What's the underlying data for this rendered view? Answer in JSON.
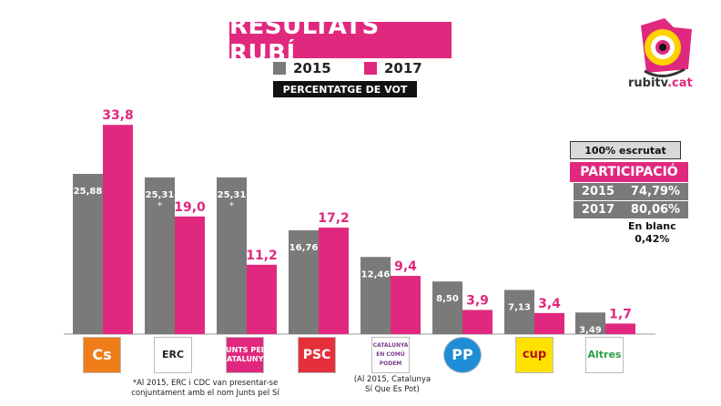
{
  "header": {
    "title": "RESULTATS RUBÍ",
    "subtitle": "PERCENTATGE DE VOT",
    "legend_2015": "2015",
    "legend_2017": "2017"
  },
  "brand": {
    "logo_text": "rubitv",
    "logo_tld": ".cat"
  },
  "colors": {
    "series_2015": "#7a7a7a",
    "series_2017": "#e0297e"
  },
  "panel": {
    "escrutat": "100% escrutat",
    "participacio_title": "PARTICIPACIÓ",
    "rows": [
      {
        "year": "2015",
        "value": "74,79%"
      },
      {
        "year": "2017",
        "value": "80,06%"
      }
    ],
    "blanc_label": "En blanc",
    "blanc_value": "0,42%"
  },
  "parties": [
    {
      "name": "Cs",
      "bg": "#ef7d1a",
      "fg": "#ffffff"
    },
    {
      "name": "ERC",
      "bg": "#ffffff",
      "fg": "#222222"
    },
    {
      "name": "JUNTS PER CATALUNYA",
      "bg": "#e0297e",
      "fg": "#ffffff"
    },
    {
      "name": "PSC",
      "bg": "#e5303c",
      "fg": "#ffffff"
    },
    {
      "name": "CATALUNYA EN COMÚ PODEM",
      "bg": "#ffffff",
      "fg": "#7b3d8d"
    },
    {
      "name": "PP",
      "bg": "#1f8dd6",
      "fg": "#ffffff"
    },
    {
      "name": "cup",
      "bg": "#ffe100",
      "fg": "#b5121b"
    },
    {
      "name": "Altres",
      "bg": "#ffffff",
      "fg": "#2e9e44"
    }
  ],
  "notes": {
    "erc_line1": "*Al 2015, ERC i CDC van presentar-se",
    "erc_line2": "conjuntament amb el nom Junts pel Sí",
    "comu_line1": "(Al 2015, Catalunya",
    "comu_line2": "Sí Que Es Pot)"
  },
  "chart_data": {
    "type": "bar",
    "categories": [
      "Cs",
      "ERC",
      "JUNTS PER CATALUNYA",
      "PSC",
      "CATALUNYA EN COMÚ PODEM",
      "PP",
      "CUP",
      "Altres"
    ],
    "series": [
      {
        "name": "2015",
        "values": [
          25.88,
          25.31,
          25.31,
          16.76,
          12.46,
          8.5,
          7.13,
          3.49
        ],
        "labels": [
          "25,88",
          "25,31",
          "25,31",
          "16,76",
          "12,46",
          "8,50",
          "7,13",
          "3,49"
        ]
      },
      {
        "name": "2017",
        "values": [
          33.8,
          19.0,
          11.2,
          17.2,
          9.4,
          3.9,
          3.4,
          1.7
        ],
        "labels": [
          "33,8",
          "19,0",
          "11,2",
          "17,2",
          "9,4",
          "3,9",
          "3,4",
          "1,7"
        ]
      }
    ],
    "asterisk_categories": [
      1,
      2
    ],
    "ylim": [
      0,
      34
    ]
  }
}
